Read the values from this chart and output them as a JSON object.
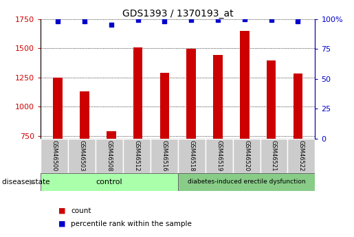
{
  "title": "GDS1393 / 1370193_at",
  "samples": [
    "GSM46500",
    "GSM46503",
    "GSM46508",
    "GSM46512",
    "GSM46516",
    "GSM46518",
    "GSM46519",
    "GSM46520",
    "GSM46521",
    "GSM46522"
  ],
  "counts": [
    1250,
    1130,
    790,
    1505,
    1290,
    1495,
    1440,
    1650,
    1395,
    1285
  ],
  "percentiles": [
    98,
    98,
    95,
    99,
    98,
    99,
    99,
    100,
    99,
    98
  ],
  "ylim_left": [
    725,
    1750
  ],
  "ylim_right": [
    0,
    100
  ],
  "yticks_left": [
    750,
    1000,
    1250,
    1500,
    1750
  ],
  "yticks_right": [
    0,
    25,
    50,
    75,
    100
  ],
  "bar_color": "#cc0000",
  "scatter_color": "#0000cc",
  "control_color": "#aaffaa",
  "disease_color": "#88cc88",
  "label_bg_color": "#cccccc",
  "control_label": "control",
  "disease_label": "diabetes-induced erectile dysfunction",
  "disease_state_label": "disease state",
  "legend_count_label": "count",
  "legend_percentile_label": "percentile rank within the sample",
  "title_fontsize": 10,
  "tick_fontsize": 8
}
